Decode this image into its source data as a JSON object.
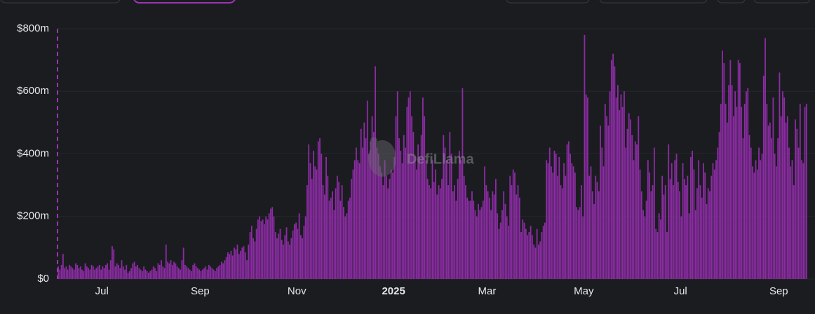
{
  "chart_data": {
    "type": "bar",
    "color": "#8b2ca3",
    "grid": true,
    "watermark": "DefiLlama",
    "ylim": [
      0,
      800
    ],
    "yticks": [
      {
        "value": 0,
        "label": "$0"
      },
      {
        "value": 200,
        "label": "$200m"
      },
      {
        "value": 400,
        "label": "$400m"
      },
      {
        "value": 600,
        "label": "$600m"
      },
      {
        "value": 800,
        "label": "$800m"
      }
    ],
    "categories": [
      null,
      null,
      null,
      null,
      null,
      null,
      null,
      null,
      null,
      null,
      null,
      null,
      null,
      null,
      null,
      null,
      null,
      null,
      null,
      null,
      null,
      null,
      null,
      null,
      null,
      null,
      null,
      null,
      "Jul",
      null,
      null,
      null,
      null,
      null,
      null,
      null,
      null,
      null,
      null,
      null,
      null,
      null,
      null,
      null,
      null,
      null,
      null,
      null,
      null,
      null,
      null,
      null,
      null,
      null,
      null,
      null,
      null,
      null,
      null,
      null,
      null,
      null,
      null,
      null,
      null,
      null,
      null,
      null,
      null,
      null,
      null,
      null,
      null,
      null,
      null,
      null,
      null,
      null,
      null,
      null,
      null,
      null,
      null,
      null,
      null,
      null,
      null,
      null,
      null,
      null,
      "Sep",
      null,
      null,
      null,
      null,
      null,
      null,
      null,
      null,
      null,
      null,
      null,
      null,
      null,
      null,
      null,
      null,
      null,
      null,
      null,
      null,
      null,
      null,
      null,
      null,
      null,
      null,
      null,
      null,
      null,
      null,
      null,
      null,
      null,
      null,
      null,
      null,
      null,
      null,
      null,
      null,
      null,
      null,
      null,
      null,
      null,
      null,
      null,
      null,
      null,
      null,
      null,
      null,
      null,
      null,
      null,
      null,
      null,
      null,
      null,
      null,
      "Nov",
      null,
      null,
      null,
      null,
      null,
      null,
      null,
      null,
      null,
      null,
      null,
      null,
      null,
      null,
      null,
      null,
      null,
      null,
      null,
      null,
      null,
      null,
      null,
      null,
      null,
      null,
      null,
      null,
      null,
      null,
      null,
      null,
      null,
      null,
      null,
      null,
      null,
      null,
      null,
      null,
      null,
      null,
      null,
      null,
      null,
      null,
      null,
      null,
      null,
      null,
      null,
      null,
      null,
      null,
      null,
      null,
      null,
      null,
      null,
      null,
      "2025",
      null,
      null,
      null,
      null,
      null,
      null,
      null,
      null,
      null,
      null,
      null,
      null,
      null,
      null,
      null,
      null,
      null,
      null,
      null,
      null,
      null,
      null,
      null,
      null,
      null,
      null,
      null,
      null,
      null,
      null,
      null,
      null,
      null,
      null,
      null,
      null,
      null,
      null,
      null,
      null,
      null,
      null,
      null,
      null,
      null,
      null,
      null,
      null,
      null,
      null,
      null,
      null,
      null,
      null,
      null,
      null,
      null,
      null,
      "Mar",
      null,
      null,
      null,
      null,
      null,
      null,
      null,
      null,
      null,
      null,
      null,
      null,
      null,
      null,
      null,
      null,
      null,
      null,
      null,
      null,
      null,
      null,
      null,
      null,
      null,
      null,
      null,
      null,
      null,
      null,
      null,
      null,
      null,
      null,
      null,
      null,
      null,
      null,
      null,
      null,
      null,
      null,
      null,
      null,
      null,
      null,
      null,
      null,
      null,
      null,
      null,
      null,
      null,
      null,
      null,
      null,
      null,
      null,
      null,
      null,
      "May",
      null,
      null,
      null,
      null,
      null,
      null,
      null,
      null,
      null,
      null,
      null,
      null,
      null,
      null,
      null,
      null,
      null,
      null,
      null,
      null,
      null,
      null,
      null,
      null,
      null,
      null,
      null,
      null,
      null,
      null,
      null,
      null,
      null,
      null,
      null,
      null,
      null,
      null,
      null,
      null,
      null,
      null,
      null,
      null,
      null,
      null,
      null,
      null,
      null,
      null,
      null,
      null,
      null,
      null,
      null,
      null,
      null,
      null,
      null,
      null,
      "Jul",
      null,
      null,
      null,
      null,
      null,
      null,
      null,
      null,
      null,
      null,
      null,
      null,
      null,
      null,
      null,
      null,
      null,
      null,
      null,
      null,
      null,
      null,
      null,
      null,
      null,
      null,
      null,
      null,
      null,
      null,
      null,
      null,
      null,
      null,
      null,
      null,
      null,
      null,
      null,
      null,
      null,
      null,
      null,
      null,
      null,
      null,
      null,
      null,
      null,
      null,
      null,
      null,
      null,
      null,
      null,
      null,
      null,
      null,
      null,
      null,
      null,
      "Sep",
      null,
      null,
      null,
      null,
      null,
      null,
      null,
      null,
      null,
      null,
      null,
      null,
      null,
      null,
      null,
      null,
      null
    ],
    "values": [
      40,
      30,
      45,
      80,
      35,
      40,
      30,
      45,
      40,
      35,
      30,
      50,
      45,
      35,
      40,
      30,
      25,
      50,
      40,
      35,
      30,
      45,
      40,
      30,
      35,
      40,
      45,
      30,
      40,
      35,
      45,
      50,
      30,
      60,
      105,
      95,
      40,
      50,
      45,
      35,
      60,
      40,
      30,
      45,
      20,
      25,
      35,
      50,
      55,
      40,
      45,
      35,
      30,
      25,
      40,
      30,
      25,
      20,
      25,
      30,
      40,
      35,
      25,
      50,
      45,
      60,
      40,
      35,
      110,
      55,
      50,
      60,
      45,
      55,
      50,
      40,
      35,
      30,
      60,
      100,
      45,
      40,
      35,
      30,
      25,
      45,
      50,
      40,
      35,
      30,
      25,
      30,
      35,
      40,
      30,
      45,
      40,
      35,
      30,
      25,
      35,
      40,
      45,
      55,
      50,
      60,
      70,
      85,
      80,
      90,
      75,
      100,
      95,
      110,
      80,
      90,
      100,
      105,
      85,
      60,
      110,
      150,
      170,
      130,
      120,
      160,
      190,
      200,
      185,
      190,
      175,
      200,
      190,
      210,
      225,
      230,
      200,
      150,
      130,
      145,
      160,
      125,
      110,
      140,
      165,
      120,
      110,
      130,
      155,
      175,
      180,
      160,
      210,
      140,
      130,
      170,
      200,
      300,
      430,
      370,
      320,
      410,
      360,
      350,
      440,
      450,
      400,
      300,
      270,
      390,
      330,
      250,
      260,
      280,
      220,
      290,
      330,
      310,
      250,
      300,
      230,
      200,
      210,
      250,
      260,
      320,
      350,
      380,
      420,
      380,
      370,
      480,
      420,
      500,
      450,
      570,
      400,
      440,
      520,
      470,
      680,
      420,
      400,
      360,
      340,
      300,
      380,
      330,
      290,
      320,
      350,
      340,
      390,
      520,
      600,
      450,
      410,
      370,
      460,
      420,
      550,
      580,
      600,
      520,
      470,
      390,
      350,
      430,
      390,
      460,
      580,
      520,
      380,
      320,
      300,
      290,
      380,
      310,
      350,
      270,
      300,
      290,
      320,
      460,
      420,
      380,
      300,
      470,
      400,
      280,
      300,
      250,
      320,
      410,
      380,
      610,
      330,
      300,
      260,
      250,
      250,
      280,
      250,
      220,
      200,
      240,
      220,
      230,
      250,
      360,
      300,
      280,
      260,
      220,
      280,
      270,
      320,
      210,
      160,
      180,
      220,
      280,
      240,
      200,
      170,
      330,
      300,
      350,
      340,
      270,
      300,
      260,
      150,
      190,
      180,
      160,
      140,
      150,
      170,
      140,
      110,
      100,
      160,
      110,
      120,
      150,
      170,
      180,
      380,
      370,
      420,
      360,
      340,
      410,
      400,
      330,
      390,
      300,
      290,
      370,
      330,
      430,
      440,
      400,
      370,
      360,
      340,
      230,
      220,
      230,
      300,
      200,
      780,
      590,
      580,
      330,
      360,
      280,
      240,
      330,
      310,
      280,
      490,
      420,
      360,
      560,
      520,
      490,
      600,
      700,
      720,
      680,
      580,
      620,
      540,
      590,
      550,
      600,
      420,
      480,
      530,
      510,
      460,
      380,
      440,
      430,
      520,
      350,
      280,
      220,
      200,
      250,
      380,
      340,
      280,
      300,
      420,
      160,
      150,
      210,
      190,
      330,
      270,
      300,
      150,
      430,
      320,
      370,
      300,
      380,
      400,
      310,
      280,
      200,
      370,
      320,
      300,
      330,
      210,
      390,
      410,
      350,
      220,
      290,
      380,
      300,
      260,
      370,
      340,
      240,
      290,
      280,
      330,
      370,
      350,
      380,
      420,
      470,
      560,
      730,
      690,
      560,
      500,
      620,
      700,
      620,
      520,
      600,
      550,
      700,
      690,
      550,
      450,
      560,
      600,
      610,
      460,
      420,
      360,
      340,
      380,
      350,
      420,
      380,
      400,
      650,
      770,
      560,
      490,
      500,
      450,
      580,
      400,
      360,
      450,
      660,
      520,
      600,
      580,
      500,
      520,
      420,
      360,
      380,
      300,
      510,
      480,
      420,
      560,
      380,
      370,
      550,
      560
    ]
  }
}
